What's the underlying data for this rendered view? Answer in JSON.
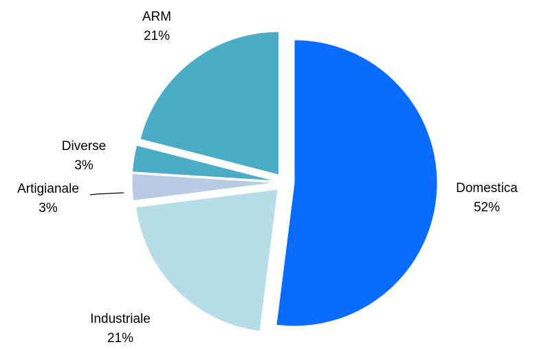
{
  "chart_data": {
    "type": "pie",
    "title": "",
    "slices": [
      {
        "label": "Domestica",
        "value": 52,
        "percent_label": "52%",
        "color": "#0a6cff"
      },
      {
        "label": "Industriale",
        "value": 21,
        "percent_label": "21%",
        "color": "#b7dde6"
      },
      {
        "label": "Artigianale",
        "value": 3,
        "percent_label": "3%",
        "color": "#b8cae4"
      },
      {
        "label": "Diverse",
        "value": 3,
        "percent_label": "3%",
        "color": "#4bacc6"
      },
      {
        "label": "ARM",
        "value": 21,
        "percent_label": "21%",
        "color": "#4bacc6"
      }
    ],
    "exploded": true,
    "legend": "none"
  }
}
